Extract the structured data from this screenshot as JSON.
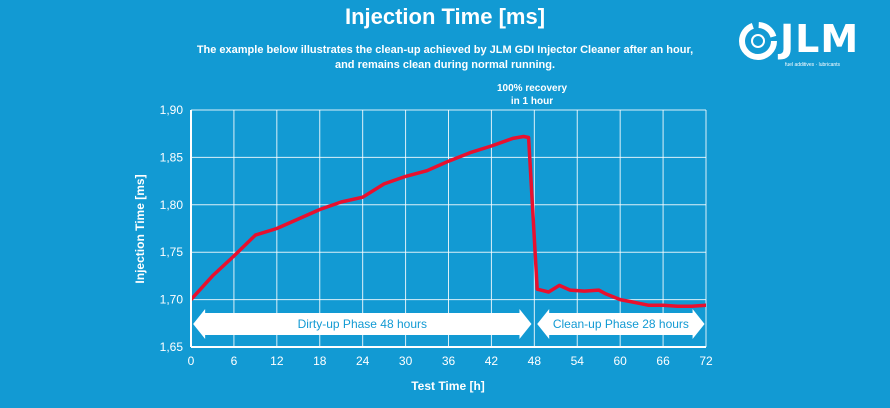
{
  "header": {
    "title": "Injection Time [ms]",
    "subtitle_line1": "The example below illustrates the clean-up achieved by JLM GDI Injector Cleaner after an hour,",
    "subtitle_line2": "and remains clean during normal running."
  },
  "logo": {
    "text": "JLM",
    "tagline": "fuel additives · lubricants"
  },
  "annotation": {
    "line1": "100% recovery",
    "line2": "in 1 hour"
  },
  "phases": {
    "dirty": "Dirty-up Phase 48 hours",
    "clean": "Clean-up Phase 28 hours"
  },
  "colors": {
    "background": "#129ad3",
    "line": "#e8102e",
    "grid": "#ffffff",
    "text": "#ffffff"
  },
  "chart_data": {
    "type": "line",
    "title": "Injection Time [ms]",
    "xlabel": "Test Time [h]",
    "ylabel": "Injection Time [ms]",
    "xlim": [
      0,
      72
    ],
    "ylim": [
      1.65,
      1.9
    ],
    "x_ticks": [
      "0",
      "6",
      "12",
      "18",
      "24",
      "30",
      "36",
      "42",
      "48",
      "54",
      "60",
      "66",
      "72"
    ],
    "y_ticks": [
      "1,65",
      "1,70",
      "1,75",
      "1,80",
      "1,85",
      "1,90"
    ],
    "grid": true,
    "series": [
      {
        "x": [
          0,
          3,
          6,
          9,
          12,
          15,
          18,
          21,
          24,
          27,
          30,
          33,
          36,
          39,
          42,
          45,
          46.5,
          47.2,
          48.4,
          50,
          51.5,
          53,
          55,
          57,
          58,
          60,
          62,
          64,
          66,
          68,
          70,
          72
        ],
        "y": [
          1.7,
          1.725,
          1.746,
          1.768,
          1.775,
          1.785,
          1.795,
          1.803,
          1.808,
          1.822,
          1.83,
          1.836,
          1.846,
          1.855,
          1.862,
          1.87,
          1.872,
          1.871,
          1.711,
          1.708,
          1.715,
          1.71,
          1.709,
          1.71,
          1.706,
          1.7,
          1.697,
          1.694,
          1.694,
          1.693,
          1.693,
          1.694
        ]
      }
    ]
  }
}
